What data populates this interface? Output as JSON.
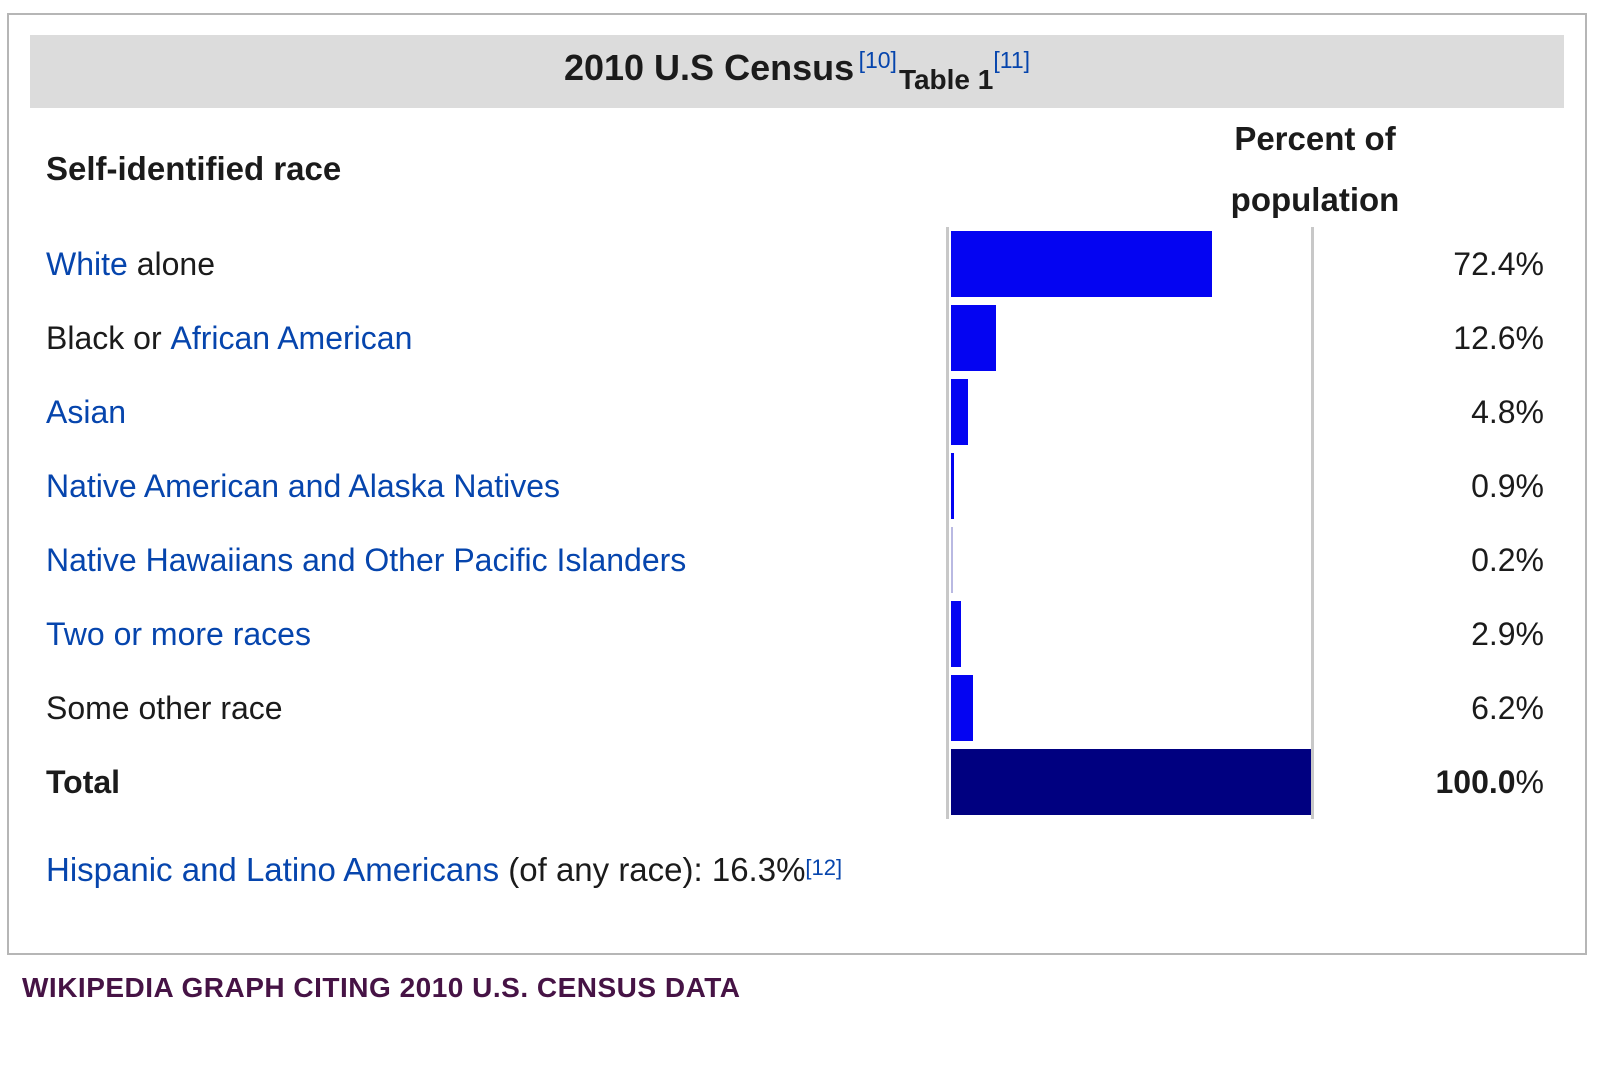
{
  "colors": {
    "bar_blue": "#0404f2",
    "bar_navy": "#000080",
    "bar_light": "#b9b9e2",
    "link_blue": "#0645ad",
    "header_band": "#dcdcdc",
    "table_border": "#b6b6b6",
    "axis_gray": "#c8c8c8",
    "caption_purple": "#461345"
  },
  "table": {
    "title": {
      "main": "2010 U.S Census",
      "ref1": "[10]",
      "sub": "Table 1",
      "ref2": "[11]"
    },
    "columns": {
      "race": "Self-identified race",
      "percent_line1": "Percent of",
      "percent_line2": "population"
    },
    "rows": [
      {
        "label_parts": [
          {
            "text": "White",
            "link": true
          },
          {
            "text": " alone",
            "link": false
          }
        ],
        "value": 72.4,
        "pct": "72.4%",
        "bold": false,
        "bar_color": "blue"
      },
      {
        "label_parts": [
          {
            "text": "Black or ",
            "link": false
          },
          {
            "text": "African American",
            "link": true
          }
        ],
        "value": 12.6,
        "pct": "12.6%",
        "bold": false,
        "bar_color": "blue"
      },
      {
        "label_parts": [
          {
            "text": "Asian",
            "link": true
          }
        ],
        "value": 4.8,
        "pct": "4.8%",
        "bold": false,
        "bar_color": "blue"
      },
      {
        "label_parts": [
          {
            "text": "Native American and Alaska Natives",
            "link": true
          }
        ],
        "value": 0.9,
        "pct": "0.9%",
        "bold": false,
        "bar_color": "blue"
      },
      {
        "label_parts": [
          {
            "text": "Native Hawaiians and Other Pacific Islanders",
            "link": true
          }
        ],
        "value": 0.2,
        "pct": "0.2%",
        "bold": false,
        "bar_color": "light"
      },
      {
        "label_parts": [
          {
            "text": "Two or more races",
            "link": true
          }
        ],
        "value": 2.9,
        "pct": "2.9%",
        "bold": false,
        "bar_color": "blue"
      },
      {
        "label_parts": [
          {
            "text": "Some other race",
            "link": false
          }
        ],
        "value": 6.2,
        "pct": "6.2%",
        "bold": false,
        "bar_color": "blue"
      },
      {
        "label_parts": [
          {
            "text": "Total",
            "link": false
          }
        ],
        "value": 100.0,
        "pct": "100.0%",
        "bold": true,
        "bar_color": "navy"
      }
    ],
    "note_parts": [
      {
        "text": "Hispanic and Latino Americans",
        "link": true,
        "sup": false
      },
      {
        "text": " (of any race): 16.3%",
        "link": false,
        "sup": false
      },
      {
        "text": "[12]",
        "link": true,
        "sup": true
      }
    ]
  },
  "caption": "WIKIPEDIA GRAPH CITING 2010 U.S. CENSUS DATA",
  "chart_data": {
    "type": "bar",
    "orientation": "horizontal",
    "title": "2010 U.S Census Table 1",
    "xlabel": "Percent of population",
    "ylabel": "Self-identified race",
    "categories": [
      "White alone",
      "Black or African American",
      "Asian",
      "Native American and Alaska Natives",
      "Native Hawaiians and Other Pacific Islanders",
      "Two or more races",
      "Some other race",
      "Total"
    ],
    "values": [
      72.4,
      12.6,
      4.8,
      0.9,
      0.2,
      2.9,
      6.2,
      100.0
    ],
    "value_labels": [
      "72.4%",
      "12.6%",
      "4.8%",
      "0.9%",
      "0.2%",
      "2.9%",
      "6.2%",
      "100.0%"
    ],
    "xlim": [
      0,
      100
    ],
    "grid": false,
    "legend": false,
    "bar_colors": [
      "#0404f2",
      "#0404f2",
      "#0404f2",
      "#0404f2",
      "#b9b9e2",
      "#0404f2",
      "#0404f2",
      "#000080"
    ],
    "annotation": "Hispanic and Latino Americans (of any race): 16.3%",
    "references": [
      "[10]",
      "[11]",
      "[12]"
    ]
  }
}
